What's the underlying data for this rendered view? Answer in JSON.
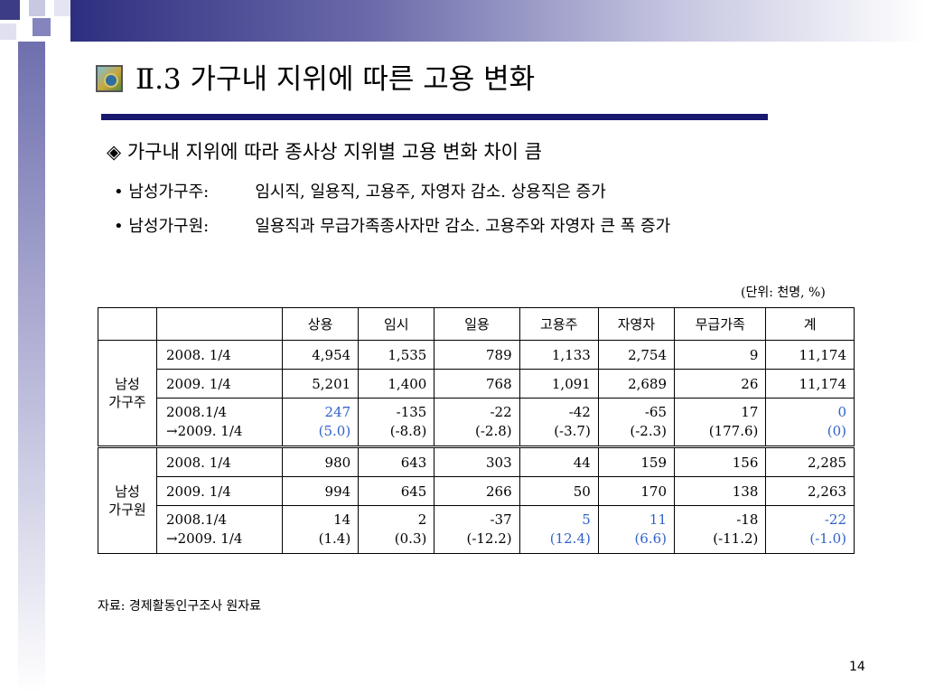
{
  "title": "Ⅱ.3 가구내 지위에 따른 고용 변화",
  "main_bullet": {
    "symbol": "◈",
    "text": "가구내 지위에 따라 종사상 지위별 고용 변화 차이 큼"
  },
  "sub_bullets": [
    {
      "symbol": "•",
      "label": "남성가구주:",
      "text": "임시직, 일용직, 고용주, 자영자 감소. 상용직은 증가"
    },
    {
      "symbol": "•",
      "label": "남성가구원:",
      "text": "일용직과 무급가족종사자만 감소. 고용주와 자영자 큰 폭 증가"
    }
  ],
  "unit_note": "(단위: 천명, %)",
  "table": {
    "headers": [
      "상용",
      "임시",
      "일용",
      "고용주",
      "자영자",
      "무급가족",
      "계"
    ],
    "groups": [
      {
        "label_line1": "남성",
        "label_line2": "가구주",
        "rows": [
          {
            "period": "2008. 1/4",
            "values": [
              "4,954",
              "1,535",
              "789",
              "1,133",
              "2,754",
              "9",
              "11,174"
            ]
          },
          {
            "period": "2009. 1/4",
            "values": [
              "5,201",
              "1,400",
              "768",
              "1,091",
              "2,689",
              "26",
              "11,174"
            ]
          }
        ],
        "change": {
          "period_line1": "2008.1/4",
          "period_line2": "→2009. 1/4",
          "values": [
            "247",
            "-135",
            "-22",
            "-42",
            "-65",
            "17",
            "0"
          ],
          "pcts": [
            "(5.0)",
            "(-8.8)",
            "(-2.8)",
            "(-3.7)",
            "(-2.3)",
            "(177.6)",
            "(0)"
          ]
        }
      },
      {
        "label_line1": "남성",
        "label_line2": "가구원",
        "rows": [
          {
            "period": "2008. 1/4",
            "values": [
              "980",
              "643",
              "303",
              "44",
              "159",
              "156",
              "2,285"
            ]
          },
          {
            "period": "2009. 1/4",
            "values": [
              "994",
              "645",
              "266",
              "50",
              "170",
              "138",
              "2,263"
            ]
          }
        ],
        "change": {
          "period_line1": "2008.1/4",
          "period_line2": "→2009. 1/4",
          "values": [
            "14",
            "2",
            "-37",
            "5",
            "11",
            "-18",
            "-22"
          ],
          "pcts": [
            "(1.4)",
            "(0.3)",
            "(-12.2)",
            "(12.4)",
            "(6.6)",
            "(-11.2)",
            "(-1.0)"
          ]
        }
      }
    ]
  },
  "source": "자료: 경제활동인구조사 원자료",
  "page_number": "14",
  "colors": {
    "accent": "#191970",
    "highlight": "#2f62c8"
  }
}
